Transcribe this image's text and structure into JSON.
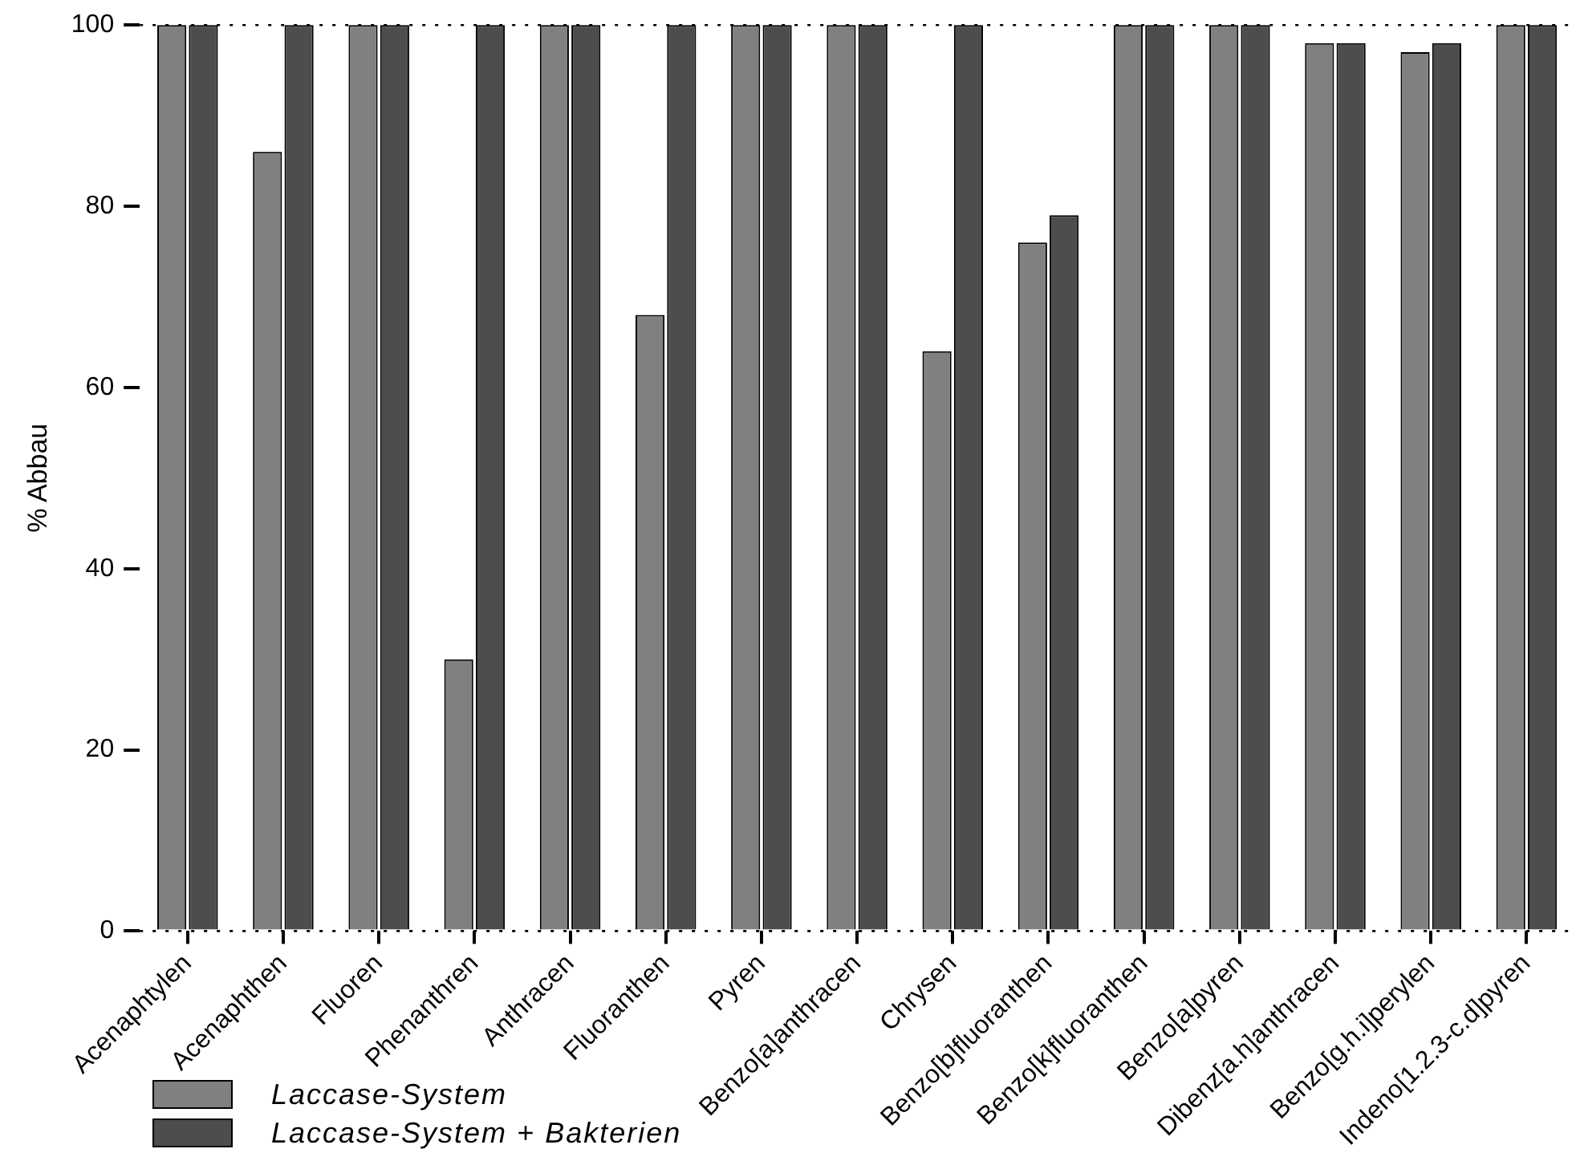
{
  "chart_data": {
    "type": "bar",
    "ylabel": "% Abbau",
    "categories": [
      "Acenaphtylen",
      "Acenaphthen",
      "Fluoren",
      "Phenanthren",
      "Anthracen",
      "Fluoranthen",
      "Pyren",
      "Benzo[a]anthracen",
      "Chrysen",
      "Benzo[b]fluoranthen",
      "Benzo[k]fluoranthen",
      "Benzo[a]pyren",
      "Dibenz[a.h]anthracen",
      "Benzo[g.h.i]perylen",
      "Indeno[1.2.3-c.d]pyren"
    ],
    "series": [
      {
        "name": "Laccase-System",
        "color": "#808080",
        "values": [
          100,
          86,
          100,
          30,
          100,
          68,
          100,
          100,
          64,
          76,
          100,
          100,
          98,
          97,
          100
        ]
      },
      {
        "name": "Laccase-System + Bakterien",
        "color": "#4d4d4d",
        "values": [
          100,
          100,
          100,
          100,
          100,
          100,
          100,
          100,
          100,
          79,
          100,
          100,
          98,
          98,
          100
        ]
      }
    ],
    "ylim": [
      0,
      100
    ],
    "yticks": [
      0,
      20,
      40,
      60,
      80,
      100
    ],
    "grid": false,
    "legend": "bottom left",
    "ref_lines": [
      {
        "axis": "y",
        "value": 0,
        "line_style": "dotted"
      },
      {
        "axis": "y",
        "value": 100,
        "line_style": "dotted"
      }
    ]
  }
}
